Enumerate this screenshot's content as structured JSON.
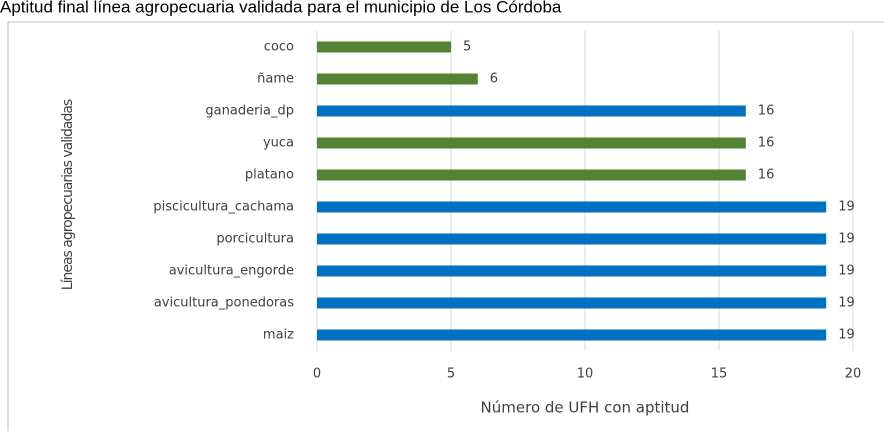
{
  "chart_data": {
    "type": "bar",
    "orientation": "horizontal",
    "title": "Aptitud final línea agropecuaria validada para el municipio de Los Córdoba",
    "x_label": "Número de UFH con aptitud",
    "y_label": "Líneas agropecuarias validadas",
    "categories": [
      "coco",
      "ñame",
      "ganaderia_dp",
      "yuca",
      "platano",
      "piscicultura_cachama",
      "porcicultura",
      "avicultura_engorde",
      "avicultura_ponedoras",
      "maiz"
    ],
    "values": [
      5,
      6,
      16,
      16,
      16,
      19,
      19,
      19,
      19,
      19
    ],
    "colors": [
      "#548235",
      "#548235",
      "#0070c0",
      "#548235",
      "#548235",
      "#0070c0",
      "#0070c0",
      "#0070c0",
      "#0070c0",
      "#0070c0"
    ],
    "xlim": [
      0,
      20
    ],
    "xticks": [
      0,
      5,
      10,
      15,
      20
    ],
    "grid": true
  }
}
